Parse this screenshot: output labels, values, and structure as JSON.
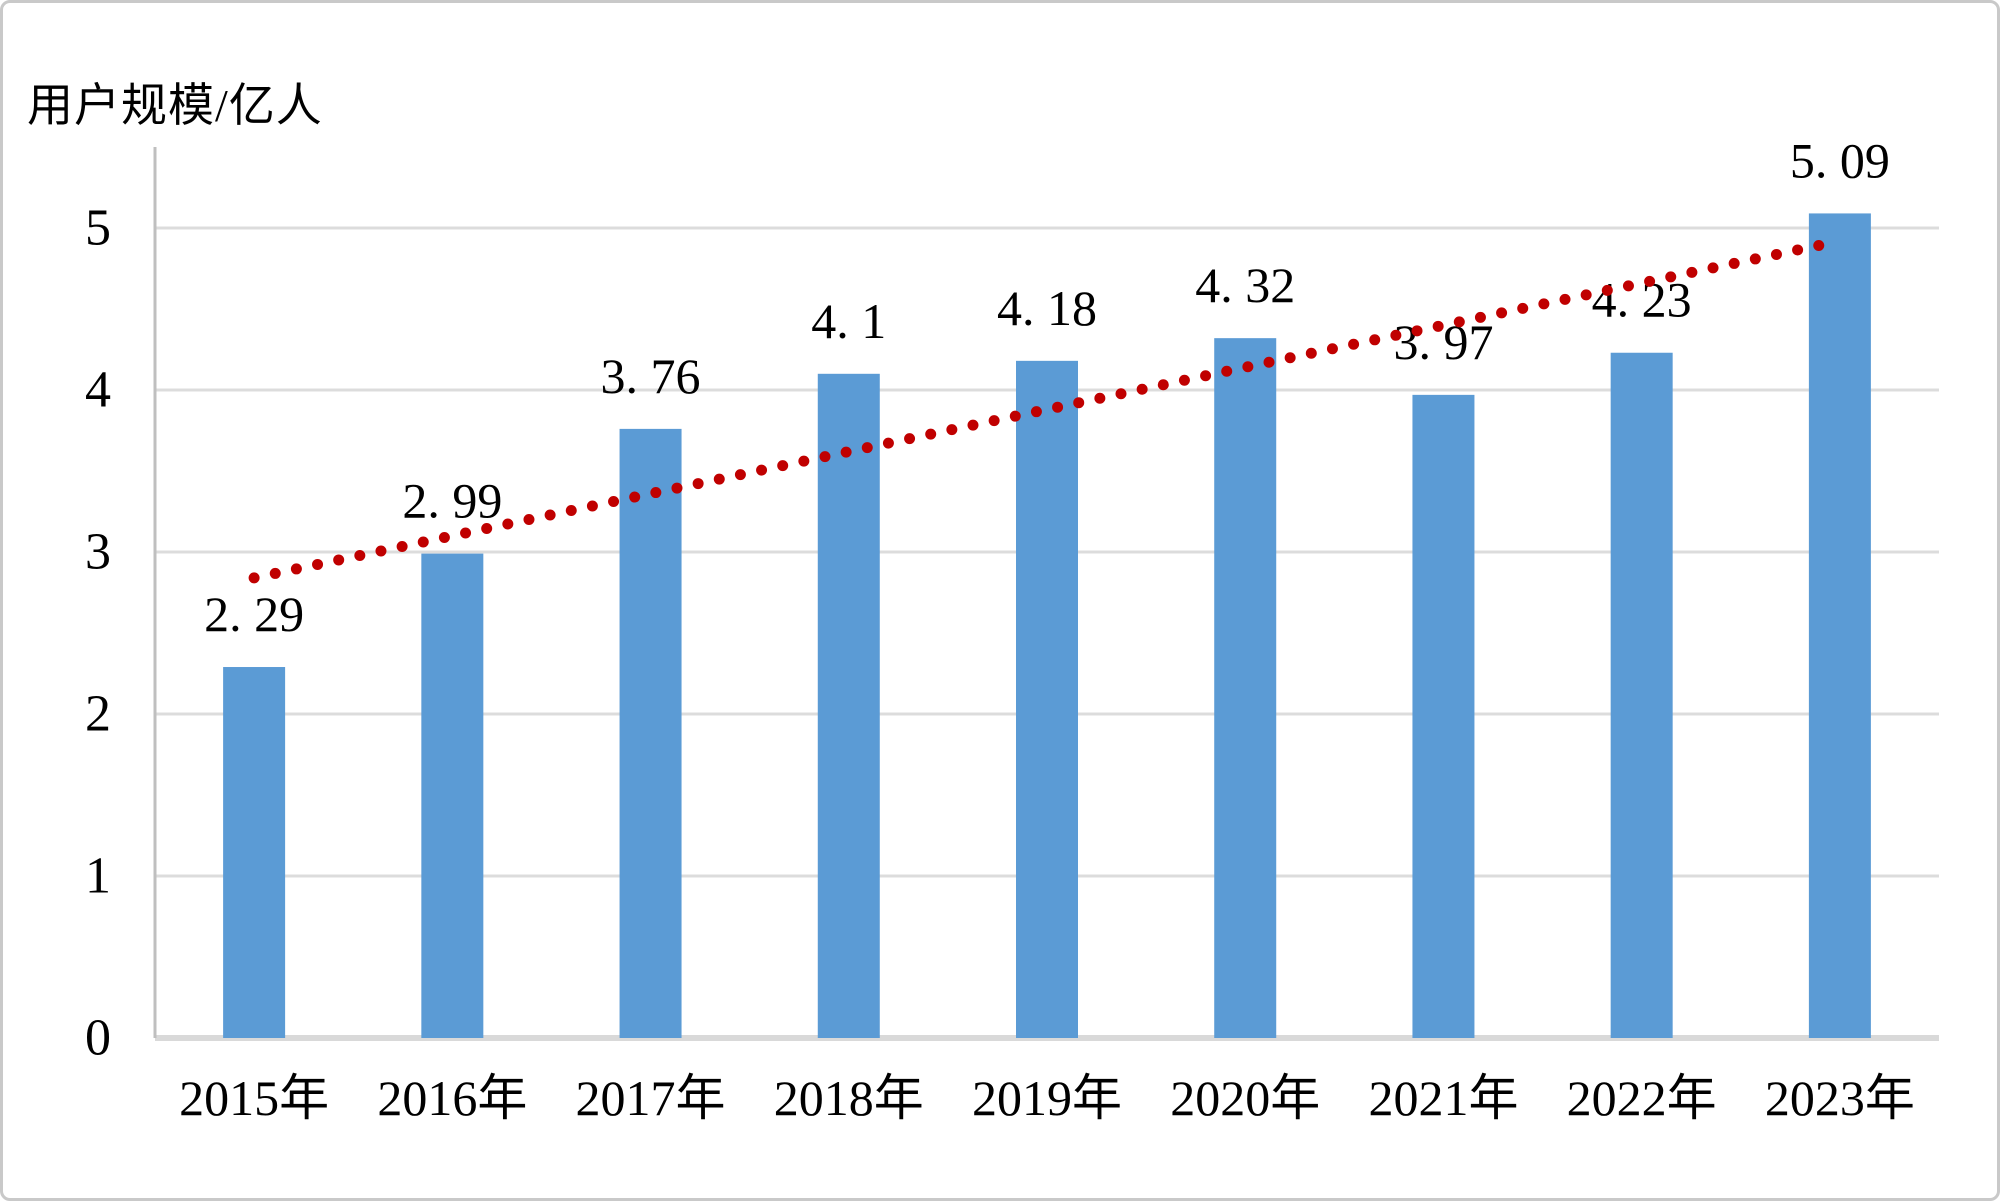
{
  "chart_data": {
    "type": "bar",
    "title": "",
    "ylabel": "用户规模/亿人",
    "xlabel": "",
    "categories": [
      "2015年",
      "2016年",
      "2017年",
      "2018年",
      "2019年",
      "2020年",
      "2021年",
      "2022年",
      "2023年"
    ],
    "values": [
      2.29,
      2.99,
      3.76,
      4.1,
      4.18,
      4.32,
      3.97,
      4.23,
      5.09
    ],
    "data_labels": [
      "2. 29",
      "2. 99",
      "3. 76",
      "4. 1",
      "4. 18",
      "4. 32",
      "3. 97",
      "4. 23",
      "5. 09"
    ],
    "y_axis": {
      "ticks": [
        "0",
        "1",
        "2",
        "3",
        "4",
        "5"
      ],
      "min": 0,
      "max": 5.5,
      "major_unit": 1
    },
    "grid": true,
    "legend": "none",
    "trendline": {
      "type": "linear",
      "style": "dotted",
      "start_value": 2.84,
      "end_value": 4.92
    },
    "colors": {
      "bar": "#5B9BD5",
      "trend": "#C00000",
      "gridline": "#DCDCDC",
      "baseline": "#D9D9D9",
      "axis_line": "#BFBFBF",
      "text": "#000000",
      "frame_border": "#C9C9C9",
      "background": "#FFFFFF"
    }
  }
}
